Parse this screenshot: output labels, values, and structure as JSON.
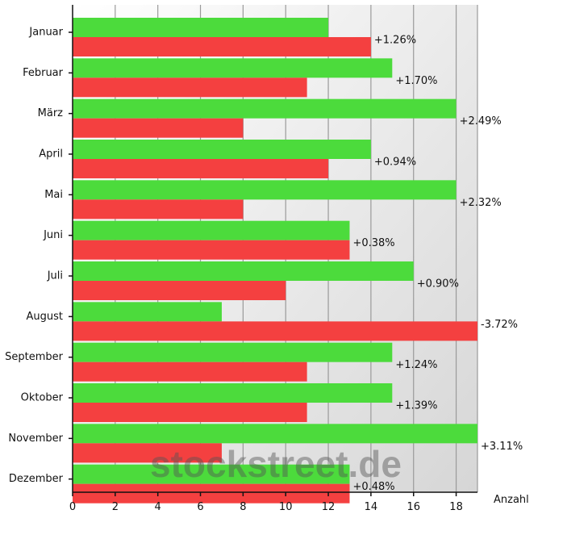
{
  "chart_data": {
    "type": "bar",
    "orientation": "horizontal",
    "categories": [
      "Januar",
      "Februar",
      "März",
      "April",
      "Mai",
      "Juni",
      "Juli",
      "August",
      "September",
      "Oktober",
      "November",
      "Dezember"
    ],
    "series": [
      {
        "color": "#4cdb3c",
        "values": [
          12,
          15,
          18,
          14,
          18,
          13,
          16,
          7,
          15,
          15,
          19,
          13
        ]
      },
      {
        "color": "#f44040",
        "values": [
          14,
          11,
          8,
          12,
          8,
          13,
          10,
          19,
          11,
          11,
          7,
          13
        ]
      }
    ],
    "annotations": [
      "+1.26%",
      "+1.70%",
      "+2.49%",
      "+0.94%",
      "+2.32%",
      "+0.38%",
      "+0.90%",
      "-3.72%",
      "+1.24%",
      "+1.39%",
      "+3.11%",
      "+0.48%"
    ],
    "xlabel": "Anzahl",
    "xlim": [
      0,
      19
    ],
    "xticks": [
      0,
      2,
      4,
      6,
      8,
      10,
      12,
      14,
      16,
      18
    ],
    "grid": "vertical",
    "legend": "none"
  },
  "watermark": "stockstreet.de"
}
